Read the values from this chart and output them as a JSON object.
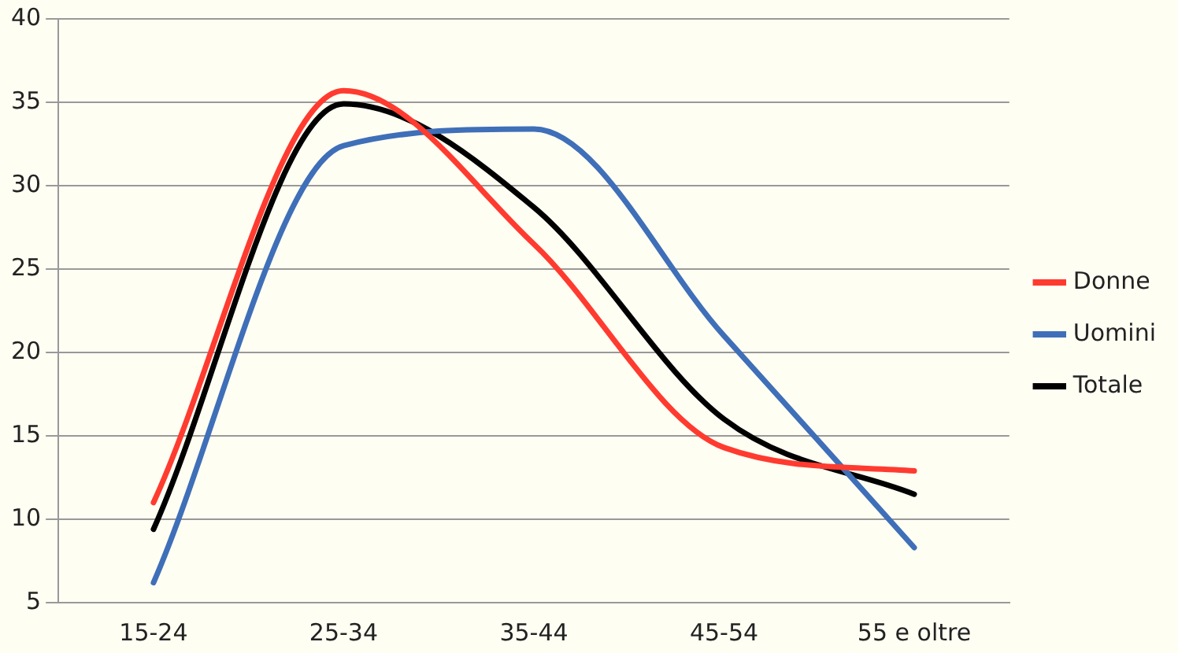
{
  "chart_data": {
    "type": "line",
    "categories": [
      "15-24",
      "25-34",
      "35-44",
      "45-54",
      "55 e oltre"
    ],
    "series": [
      {
        "name": "Donne",
        "color": "#ff3b30",
        "values": [
          11,
          35.7,
          26.5,
          14.3,
          12.9
        ]
      },
      {
        "name": "Uomini",
        "color": "#3f6fb8",
        "values": [
          6.2,
          32.4,
          33.4,
          21,
          8.3
        ]
      },
      {
        "name": "Totale",
        "color": "#000000",
        "values": [
          9.4,
          34.9,
          28.7,
          16,
          11.5
        ]
      }
    ],
    "ylim": [
      5,
      40
    ],
    "yticks": [
      5,
      10,
      15,
      20,
      25,
      30,
      35,
      40
    ],
    "grid": "y",
    "legend": "right",
    "marker": "none",
    "line_style": "solid"
  }
}
